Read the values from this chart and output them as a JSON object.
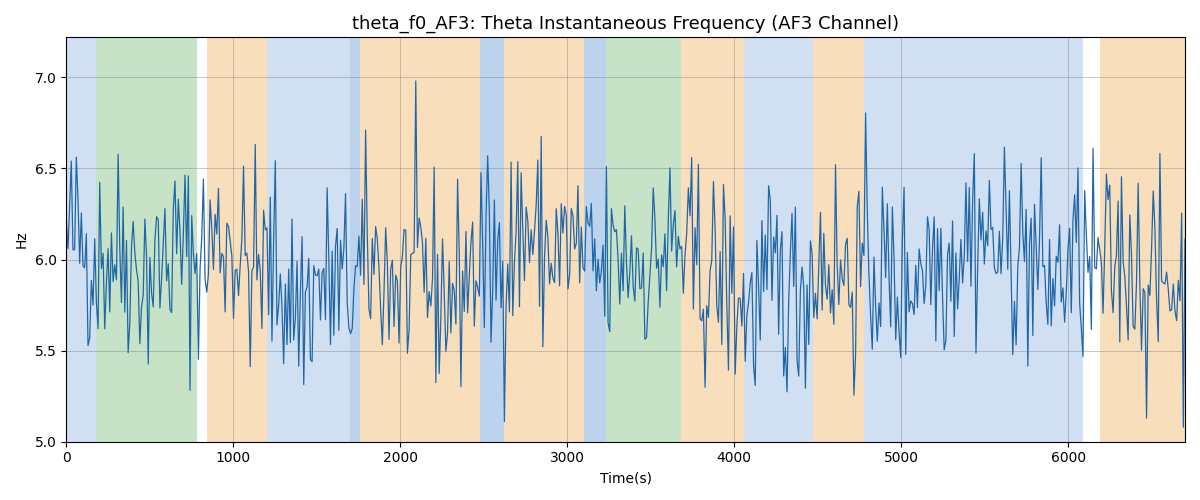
{
  "title": "theta_f0_AF3: Theta Instantaneous Frequency (AF3 Channel)",
  "xlabel": "Time(s)",
  "ylabel": "Hz",
  "ylim": [
    5.0,
    7.22
  ],
  "xlim": [
    0,
    6700
  ],
  "yticks": [
    5.0,
    5.5,
    6.0,
    6.5,
    7.0
  ],
  "xticks": [
    0,
    1000,
    2000,
    3000,
    4000,
    5000,
    6000
  ],
  "line_color": "#2167a8",
  "line_width": 0.9,
  "bg_regions": [
    {
      "xmin": 0,
      "xmax": 180,
      "color": "#aac8e8",
      "alpha": 0.55
    },
    {
      "xmin": 180,
      "xmax": 780,
      "color": "#90c990",
      "alpha": 0.5
    },
    {
      "xmin": 780,
      "xmax": 840,
      "color": "#ffffff",
      "alpha": 0.0
    },
    {
      "xmin": 840,
      "xmax": 1200,
      "color": "#f5c890",
      "alpha": 0.6
    },
    {
      "xmin": 1200,
      "xmax": 1700,
      "color": "#aac8e8",
      "alpha": 0.55
    },
    {
      "xmin": 1700,
      "xmax": 1760,
      "color": "#aac8e8",
      "alpha": 0.8
    },
    {
      "xmin": 1760,
      "xmax": 2480,
      "color": "#f5c890",
      "alpha": 0.6
    },
    {
      "xmin": 2480,
      "xmax": 2620,
      "color": "#aac8e8",
      "alpha": 0.8
    },
    {
      "xmin": 2620,
      "xmax": 3100,
      "color": "#f5c890",
      "alpha": 0.6
    },
    {
      "xmin": 3100,
      "xmax": 3230,
      "color": "#aac8e8",
      "alpha": 0.8
    },
    {
      "xmin": 3230,
      "xmax": 3680,
      "color": "#90c990",
      "alpha": 0.5
    },
    {
      "xmin": 3680,
      "xmax": 4060,
      "color": "#f5c890",
      "alpha": 0.6
    },
    {
      "xmin": 4060,
      "xmax": 4470,
      "color": "#aac8e8",
      "alpha": 0.55
    },
    {
      "xmin": 4470,
      "xmax": 4780,
      "color": "#f5c890",
      "alpha": 0.6
    },
    {
      "xmin": 4780,
      "xmax": 6090,
      "color": "#aac8e8",
      "alpha": 0.55
    },
    {
      "xmin": 6090,
      "xmax": 6190,
      "color": "#ffffff",
      "alpha": 0.0
    },
    {
      "xmin": 6190,
      "xmax": 6700,
      "color": "#f5c890",
      "alpha": 0.6
    }
  ],
  "seed": 42,
  "n_points": 670,
  "base_freq": 5.95,
  "noise_amp": 0.28,
  "grid_color": "#808080",
  "grid_alpha": 0.6,
  "grid_lw": 0.5,
  "title_fontsize": 13,
  "figsize": [
    12.0,
    5.0
  ]
}
